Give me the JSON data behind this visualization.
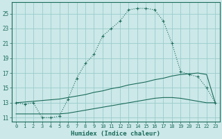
{
  "xlabel": "Humidex (Indice chaleur)",
  "background_color": "#cce8e8",
  "grid_color": "#99cccc",
  "line_color": "#1a6b5a",
  "x_ticks": [
    0,
    1,
    2,
    3,
    4,
    5,
    6,
    7,
    8,
    9,
    10,
    11,
    12,
    13,
    14,
    15,
    16,
    17,
    18,
    19,
    20,
    21,
    22,
    23
  ],
  "y_ticks": [
    11,
    13,
    15,
    17,
    19,
    21,
    23,
    25
  ],
  "ylim": [
    10.5,
    26.5
  ],
  "xlim": [
    -0.5,
    23.5
  ],
  "curve1_x": [
    0,
    1,
    2,
    3,
    4,
    5,
    6,
    7,
    8,
    9,
    10,
    11,
    12,
    13,
    14,
    15,
    16,
    17,
    18,
    19,
    20,
    21,
    22,
    23
  ],
  "curve1_y": [
    13.0,
    12.8,
    13.0,
    11.0,
    11.0,
    11.2,
    13.5,
    16.3,
    18.3,
    19.5,
    22.0,
    23.0,
    24.0,
    25.5,
    25.7,
    25.7,
    25.5,
    24.0,
    21.0,
    17.2,
    16.8,
    16.5,
    15.0,
    13.0
  ],
  "curve2_x": [
    0,
    1,
    2,
    3,
    4,
    5,
    6,
    7,
    8,
    9,
    10,
    11,
    12,
    13,
    14,
    15,
    16,
    17,
    18,
    19,
    20,
    21,
    22,
    23
  ],
  "curve2_y": [
    13.0,
    13.1,
    13.2,
    13.3,
    13.4,
    13.5,
    13.7,
    13.9,
    14.1,
    14.4,
    14.6,
    14.9,
    15.1,
    15.4,
    15.6,
    15.8,
    16.1,
    16.3,
    16.6,
    16.8,
    16.9,
    17.0,
    16.8,
    13.0
  ],
  "curve3_x": [
    0,
    1,
    2,
    3,
    4,
    5,
    6,
    7,
    8,
    9,
    10,
    11,
    12,
    13,
    14,
    15,
    16,
    17,
    18,
    19,
    20,
    21,
    22,
    23
  ],
  "curve3_y": [
    11.5,
    11.5,
    11.5,
    11.5,
    11.5,
    11.5,
    11.6,
    11.8,
    12.0,
    12.2,
    12.4,
    12.6,
    12.8,
    13.0,
    13.2,
    13.4,
    13.6,
    13.7,
    13.7,
    13.6,
    13.4,
    13.2,
    13.0,
    13.0
  ]
}
